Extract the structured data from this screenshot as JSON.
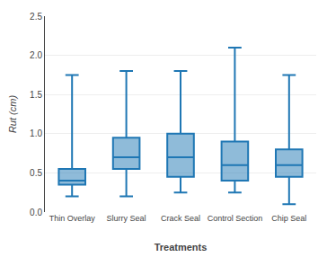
{
  "chart_data": {
    "type": "box",
    "xlabel": "Treatments",
    "ylabel": "Rut (cm)",
    "categories": [
      "Thin Overlay",
      "Slurry Seal",
      "Crack Seal",
      "Control Section",
      "Chip Seal"
    ],
    "whislo": [
      0.2,
      0.2,
      0.25,
      0.25,
      0.1
    ],
    "q1": [
      0.35,
      0.55,
      0.45,
      0.4,
      0.45
    ],
    "med": [
      0.4,
      0.7,
      0.7,
      0.6,
      0.6
    ],
    "q3": [
      0.55,
      0.95,
      1.0,
      0.9,
      0.8
    ],
    "whishi": [
      1.75,
      1.8,
      1.8,
      2.1,
      1.75
    ],
    "ylim": [
      0.0,
      2.5
    ],
    "yticks": [
      {
        "value": 0.0,
        "label": "0.0"
      },
      0.5,
      {
        "value": 1.0,
        "label": "1.0"
      },
      1.5,
      {
        "value": 2.0,
        "label": "2.0"
      },
      2.5
    ],
    "grid": true
  }
}
